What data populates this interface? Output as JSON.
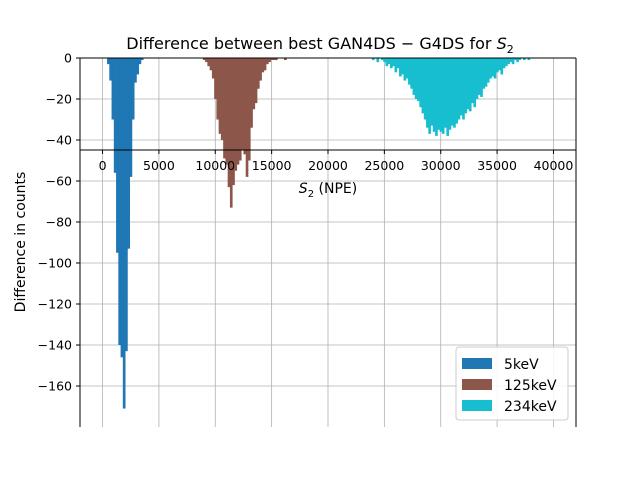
{
  "chart_data": {
    "type": "bar",
    "title": "Difference between best GAN4DS − G4DS for",
    "title_math": "S",
    "title_math_sub": "2",
    "xlabel_math": "S",
    "xlabel_math_sub": "2",
    "xlabel_rest": " (NPE)",
    "ylabel": "Difference in counts",
    "xlim": [
      -2000,
      42000
    ],
    "ylim": [
      -180,
      0
    ],
    "x_ticks": [
      0,
      5000,
      10000,
      15000,
      20000,
      25000,
      30000,
      35000,
      40000
    ],
    "x_tick_labels": [
      "0",
      "5000",
      "10000",
      "15000",
      "20000",
      "25000",
      "30000",
      "35000",
      "40000"
    ],
    "y_ticks": [
      0,
      -20,
      -40,
      -60,
      -80,
      -100,
      -120,
      -140,
      -160
    ],
    "y_tick_labels": [
      "0",
      "−20",
      "−40",
      "−60",
      "−80",
      "−100",
      "−120",
      "−140",
      "−160"
    ],
    "grid": true,
    "legend_position": "bottom-right",
    "bin_width": 200,
    "series": [
      {
        "name": "5keV",
        "color": "#1f77b4",
        "x": [
          500,
          700,
          900,
          1100,
          1300,
          1500,
          1700,
          1900,
          2100,
          2300,
          2500,
          2700,
          2900,
          3100,
          3300,
          3500
        ],
        "values": [
          -3,
          -11,
          -30,
          -56,
          -95,
          -140,
          -146,
          -171,
          -143,
          -93,
          -58,
          -30,
          -12,
          -8,
          -3,
          -1
        ]
      },
      {
        "name": "125keV",
        "color": "#8c564b",
        "x": [
          8200,
          8400,
          8600,
          8800,
          9000,
          9200,
          9400,
          9600,
          9800,
          10000,
          10200,
          10400,
          10600,
          10800,
          11000,
          11200,
          11400,
          11600,
          11800,
          12000,
          12200,
          12400,
          12600,
          12800,
          13000,
          13200,
          13400,
          13600,
          13800,
          14000,
          14200,
          14400,
          14600,
          14800,
          15000,
          15200,
          15400,
          15600,
          15800,
          16000,
          16200,
          16400,
          16600,
          16800,
          17000
        ],
        "values": [
          0,
          0,
          0,
          0,
          -1,
          -2,
          -4,
          -6,
          -10,
          -20,
          -30,
          -37,
          -40,
          -49,
          -52,
          -63,
          -73,
          -62,
          -55,
          -52,
          -50,
          -45,
          -47,
          -58,
          -50,
          -34,
          -25,
          -22,
          -15,
          -11,
          -7,
          -6,
          -3,
          -2,
          -1,
          -1,
          -1,
          0,
          0,
          0,
          -1,
          0,
          0,
          0,
          0
        ]
      },
      {
        "name": "234keV",
        "color": "#17becf",
        "x": [
          24000,
          24200,
          24400,
          24600,
          24800,
          25000,
          25200,
          25400,
          25600,
          25800,
          26000,
          26200,
          26400,
          26600,
          26800,
          27000,
          27200,
          27400,
          27600,
          27800,
          28000,
          28200,
          28400,
          28600,
          28800,
          29000,
          29200,
          29400,
          29600,
          29800,
          30000,
          30200,
          30400,
          30600,
          30800,
          31000,
          31200,
          31400,
          31600,
          31800,
          32000,
          32200,
          32400,
          32600,
          32800,
          33000,
          33200,
          33400,
          33600,
          33800,
          34000,
          34200,
          34400,
          34600,
          34800,
          35000,
          35200,
          35400,
          35600,
          35800,
          36000,
          36200,
          36400,
          36600,
          36800,
          37000,
          37200,
          37400,
          37600,
          37800
        ],
        "values": [
          -1,
          0,
          -2,
          0,
          -1,
          -2,
          -4,
          -3,
          -5,
          -4,
          -7,
          -5,
          -9,
          -8,
          -11,
          -10,
          -13,
          -15,
          -18,
          -20,
          -21,
          -24,
          -27,
          -30,
          -34,
          -37,
          -33,
          -36,
          -38,
          -35,
          -36,
          -37,
          -34,
          -38,
          -35,
          -33,
          -34,
          -32,
          -30,
          -28,
          -30,
          -27,
          -25,
          -26,
          -22,
          -24,
          -20,
          -18,
          -19,
          -15,
          -14,
          -12,
          -10,
          -9,
          -10,
          -7,
          -6,
          -8,
          -5,
          -4,
          -3,
          -2,
          -3,
          -1,
          -2,
          -1,
          0,
          -1,
          0,
          -1
        ]
      }
    ]
  }
}
